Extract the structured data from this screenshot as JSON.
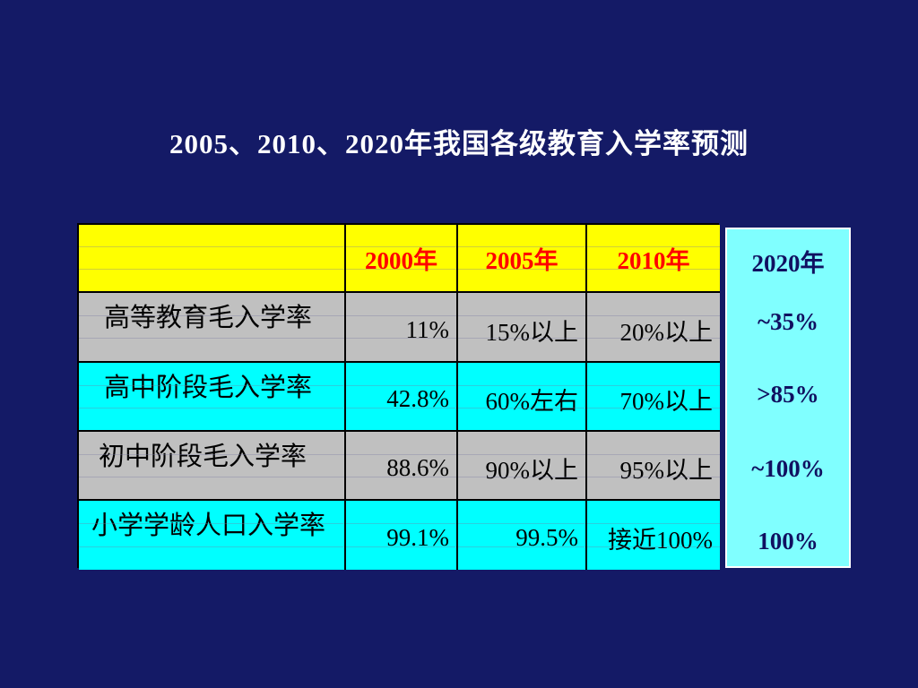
{
  "title": "2005、2010、2020年我国各级教育入学率预测",
  "table": {
    "header": [
      "",
      "2000年",
      "2005年",
      "2010年"
    ],
    "rows": [
      {
        "label": "高等教育毛入学率",
        "values": [
          "11%",
          "15%以上",
          "20%以上"
        ]
      },
      {
        "label": "高中阶段毛入学率",
        "values": [
          "42.8%",
          "60%左右",
          "70%以上"
        ]
      },
      {
        "label": "初中阶段毛入学率",
        "values": [
          "88.6%",
          "90%以上",
          "95%以上"
        ]
      },
      {
        "label": "小学学龄人口入学率",
        "values": [
          "99.1%",
          "99.5%",
          "接近100%"
        ]
      }
    ],
    "row_colors": [
      "#c0c0c0",
      "#00ffff",
      "#c0c0c0",
      "#00ffff"
    ],
    "header_color": "#ffff00"
  },
  "projection_2020": {
    "header": "2020年",
    "values": [
      "~35%",
      ">85%",
      "~100%",
      "100%"
    ],
    "background": "#80ffff"
  },
  "colors": {
    "background": "#141a66",
    "title": "#ffffff",
    "header_text": "#ff0000"
  }
}
